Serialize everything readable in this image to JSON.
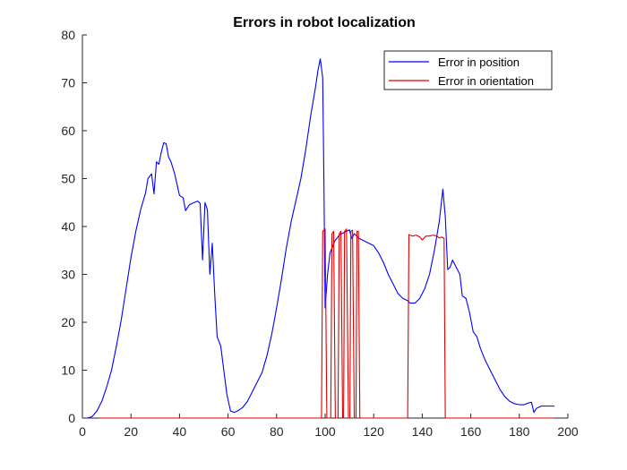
{
  "chart_data": {
    "type": "line",
    "title": "Errors in robot localization",
    "xlabel": "",
    "ylabel": "",
    "xlim": [
      0,
      200
    ],
    "ylim": [
      0,
      80
    ],
    "xticks": [
      0,
      20,
      40,
      60,
      80,
      100,
      120,
      140,
      160,
      180,
      200
    ],
    "yticks": [
      0,
      10,
      20,
      30,
      40,
      50,
      60,
      70,
      80
    ],
    "grid": false,
    "legend_position": "top-right",
    "series": [
      {
        "name": "Error in position",
        "color": "#0000ff",
        "points": [
          [
            2,
            0
          ],
          [
            4,
            0.3
          ],
          [
            6,
            1.5
          ],
          [
            8,
            3.5
          ],
          [
            10,
            6.5
          ],
          [
            12,
            10
          ],
          [
            14,
            15
          ],
          [
            16,
            20.5
          ],
          [
            18,
            27
          ],
          [
            20,
            33.5
          ],
          [
            22,
            39
          ],
          [
            24,
            43.5
          ],
          [
            26,
            47
          ],
          [
            27,
            50
          ],
          [
            28.5,
            51
          ],
          [
            29.5,
            46.8
          ],
          [
            30.5,
            53.5
          ],
          [
            31.5,
            53
          ],
          [
            32.5,
            55.5
          ],
          [
            33.5,
            57.5
          ],
          [
            34.5,
            57.3
          ],
          [
            35.5,
            54.5
          ],
          [
            36.5,
            53.5
          ],
          [
            38,
            51
          ],
          [
            40,
            46.5
          ],
          [
            41.5,
            46
          ],
          [
            42.5,
            43.3
          ],
          [
            44,
            44.5
          ],
          [
            46,
            45
          ],
          [
            47.5,
            45.3
          ],
          [
            48.5,
            44.8
          ],
          [
            49.5,
            33
          ],
          [
            50.5,
            45
          ],
          [
            51.5,
            43.5
          ],
          [
            52.5,
            30
          ],
          [
            53.5,
            36.5
          ],
          [
            54.5,
            26
          ],
          [
            55.5,
            17
          ],
          [
            57,
            15
          ],
          [
            58,
            11
          ],
          [
            59.5,
            5
          ],
          [
            61,
            1.5
          ],
          [
            62.5,
            1.2
          ],
          [
            64,
            1.5
          ],
          [
            66,
            2.2
          ],
          [
            68,
            3.5
          ],
          [
            70,
            5.5
          ],
          [
            72,
            7.5
          ],
          [
            74,
            9.5
          ],
          [
            76,
            13
          ],
          [
            78,
            17.5
          ],
          [
            80,
            23
          ],
          [
            82,
            29
          ],
          [
            84,
            35.5
          ],
          [
            86,
            41
          ],
          [
            88,
            45.5
          ],
          [
            90,
            50
          ],
          [
            92,
            56
          ],
          [
            94,
            63
          ],
          [
            96,
            69
          ],
          [
            97,
            72.5
          ],
          [
            98,
            75
          ],
          [
            99,
            71
          ],
          [
            99.5,
            49
          ],
          [
            100,
            23
          ],
          [
            101,
            30
          ],
          [
            102,
            34.5
          ],
          [
            104,
            37
          ],
          [
            106,
            38.3
          ],
          [
            108,
            38.8
          ],
          [
            110,
            39.3
          ],
          [
            111,
            37.5
          ],
          [
            112,
            38.5
          ],
          [
            114,
            37.5
          ],
          [
            116,
            37
          ],
          [
            118,
            36.5
          ],
          [
            120,
            36
          ],
          [
            122,
            34.5
          ],
          [
            124,
            32.5
          ],
          [
            126,
            30
          ],
          [
            128,
            28
          ],
          [
            130,
            26
          ],
          [
            132,
            25
          ],
          [
            134,
            24.5
          ],
          [
            135,
            24
          ],
          [
            137,
            24
          ],
          [
            139,
            25
          ],
          [
            141,
            27
          ],
          [
            143,
            30
          ],
          [
            145,
            35
          ],
          [
            147,
            41
          ],
          [
            148.5,
            47.8
          ],
          [
            149.5,
            42
          ],
          [
            150.5,
            31
          ],
          [
            151.5,
            31.5
          ],
          [
            152.5,
            33
          ],
          [
            154,
            31.5
          ],
          [
            155.5,
            30
          ],
          [
            156.5,
            25.5
          ],
          [
            158,
            25
          ],
          [
            159.5,
            22
          ],
          [
            161,
            18
          ],
          [
            162.5,
            17
          ],
          [
            164,
            14.5
          ],
          [
            166,
            12
          ],
          [
            168,
            10
          ],
          [
            170,
            8
          ],
          [
            172,
            6
          ],
          [
            174,
            4.5
          ],
          [
            176,
            3.5
          ],
          [
            178,
            3
          ],
          [
            180,
            2.8
          ],
          [
            182,
            2.8
          ],
          [
            184,
            3.2
          ],
          [
            185,
            3.3
          ],
          [
            186,
            1.2
          ],
          [
            187,
            2
          ],
          [
            189,
            2.5
          ],
          [
            191,
            2.5
          ],
          [
            193,
            2.5
          ],
          [
            194.5,
            2.5
          ]
        ]
      },
      {
        "name": "Error in orientation",
        "color": "#e00000",
        "points": [
          [
            7,
            0
          ],
          [
            98.5,
            0
          ],
          [
            99,
            39
          ],
          [
            100,
            39.5
          ],
          [
            100.7,
            0
          ],
          [
            102.3,
            0
          ],
          [
            102.8,
            38.5
          ],
          [
            103.5,
            39
          ],
          [
            104.2,
            0
          ],
          [
            105.3,
            0
          ],
          [
            105.8,
            38.5
          ],
          [
            106.5,
            39
          ],
          [
            107.2,
            0
          ],
          [
            107.6,
            0
          ],
          [
            108,
            39
          ],
          [
            108.8,
            39.5
          ],
          [
            109.6,
            0
          ],
          [
            110.2,
            0
          ],
          [
            110.6,
            39
          ],
          [
            111.3,
            39.2
          ],
          [
            112,
            0
          ],
          [
            112.7,
            0
          ],
          [
            113.1,
            39
          ],
          [
            113.7,
            39
          ],
          [
            114.3,
            0
          ],
          [
            134,
            0
          ],
          [
            134.5,
            38.3
          ],
          [
            136,
            38
          ],
          [
            137.5,
            38.2
          ],
          [
            139,
            37.8
          ],
          [
            140,
            37.2
          ],
          [
            141.5,
            38
          ],
          [
            143,
            38
          ],
          [
            144.5,
            38.2
          ],
          [
            146,
            38
          ],
          [
            147,
            37.6
          ],
          [
            148,
            37.8
          ],
          [
            149,
            37.5
          ],
          [
            149.5,
            0
          ],
          [
            194,
            0
          ]
        ]
      }
    ]
  }
}
